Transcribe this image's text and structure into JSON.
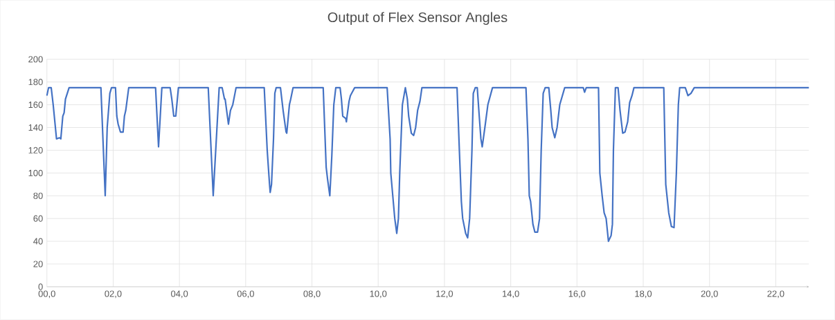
{
  "chart_data": {
    "type": "line",
    "title": "Output of Flex Sensor Angles",
    "x": [
      0,
      0.05,
      0.13,
      0.19,
      0.29,
      0.38,
      0.42,
      0.48,
      0.52,
      0.56,
      0.67,
      1.63,
      1.76,
      1.82,
      1.9,
      1.95,
      2.07,
      2.11,
      2.15,
      2.22,
      2.3,
      2.34,
      2.38,
      2.47,
      3.28,
      3.37,
      3.47,
      3.72,
      3.77,
      3.83,
      3.89,
      3.97,
      4.87,
      5.02,
      5.2,
      5.29,
      5.36,
      5.38,
      5.48,
      5.54,
      5.61,
      5.71,
      6.56,
      6.65,
      6.72,
      6.74,
      6.78,
      6.84,
      6.88,
      6.92,
      7.05,
      7.13,
      7.22,
      7.24,
      7.32,
      7.36,
      7.43,
      8.34,
      8.43,
      8.47,
      8.54,
      8.6,
      8.66,
      8.72,
      8.85,
      8.89,
      8.93,
      9.02,
      9.04,
      9.06,
      9.12,
      9.16,
      9.29,
      10.27,
      10.36,
      10.38,
      10.44,
      10.5,
      10.56,
      10.61,
      10.65,
      10.73,
      10.82,
      10.88,
      10.92,
      11.0,
      11.07,
      11.13,
      11.19,
      11.26,
      11.32,
      12.38,
      12.45,
      12.51,
      12.55,
      12.64,
      12.7,
      12.76,
      12.83,
      12.87,
      12.93,
      12.99,
      13.05,
      13.1,
      13.14,
      13.22,
      13.31,
      13.45,
      14.46,
      14.52,
      14.56,
      14.6,
      14.67,
      14.73,
      14.81,
      14.87,
      14.92,
      14.98,
      15.04,
      15.15,
      15.21,
      15.25,
      15.33,
      15.4,
      15.48,
      15.63,
      16.19,
      16.23,
      16.28,
      16.65,
      16.69,
      16.76,
      16.82,
      16.88,
      16.95,
      17.03,
      17.07,
      17.1,
      17.16,
      17.24,
      17.3,
      17.38,
      17.45,
      17.53,
      17.59,
      17.66,
      17.72,
      18.62,
      18.68,
      18.77,
      18.85,
      18.93,
      19.0,
      19.06,
      19.1,
      19.27,
      19.35,
      19.44,
      19.54,
      23.0
    ],
    "series": [
      {
        "color": "#4472c4",
        "values": [
          168,
          175,
          175,
          160,
          130,
          131,
          130,
          150,
          153,
          165,
          175,
          175,
          80,
          140,
          170,
          175,
          175,
          150,
          143,
          136,
          136,
          150,
          155,
          175,
          175,
          123,
          175,
          175,
          165,
          150,
          150,
          175,
          175,
          80,
          175,
          175,
          165,
          165,
          143,
          155,
          160,
          175,
          175,
          120,
          90,
          83,
          90,
          130,
          170,
          175,
          175,
          155,
          136,
          135,
          160,
          165,
          175,
          175,
          105,
          95,
          80,
          115,
          160,
          175,
          175,
          165,
          150,
          148,
          145,
          150,
          163,
          168,
          175,
          175,
          130,
          100,
          80,
          60,
          47,
          60,
          100,
          160,
          175,
          165,
          150,
          135,
          133,
          140,
          155,
          163,
          175,
          175,
          120,
          75,
          60,
          47,
          43,
          60,
          120,
          170,
          175,
          175,
          150,
          130,
          123,
          140,
          160,
          175,
          175,
          130,
          80,
          75,
          55,
          48,
          48,
          60,
          120,
          170,
          175,
          175,
          155,
          140,
          131,
          140,
          160,
          175,
          175,
          171,
          175,
          175,
          100,
          80,
          65,
          60,
          40,
          45,
          55,
          120,
          175,
          175,
          155,
          135,
          136,
          145,
          162,
          168,
          175,
          175,
          90,
          65,
          53,
          52,
          100,
          160,
          175,
          175,
          168,
          170,
          175,
          175
        ]
      }
    ],
    "xlim": [
      0,
      23
    ],
    "xticks": [
      {
        "value": 0,
        "label": "00,0"
      },
      {
        "value": 2,
        "label": "02,0"
      },
      {
        "value": 4,
        "label": "04,0"
      },
      {
        "value": 6,
        "label": "06,0"
      },
      {
        "value": 8,
        "label": "08,0"
      },
      {
        "value": 10,
        "label": "10,0"
      },
      {
        "value": 12,
        "label": "12,0"
      },
      {
        "value": 14,
        "label": "14,0"
      },
      {
        "value": 16,
        "label": "16,0"
      },
      {
        "value": 18,
        "label": "18,0"
      },
      {
        "value": 20,
        "label": "20,0"
      },
      {
        "value": 22,
        "label": "22,0"
      }
    ],
    "ylim": [
      0,
      200
    ],
    "yticks": [
      0,
      20,
      40,
      60,
      80,
      100,
      120,
      140,
      160,
      180,
      200
    ],
    "grid": true,
    "marker": "none",
    "line_style": "solid"
  }
}
